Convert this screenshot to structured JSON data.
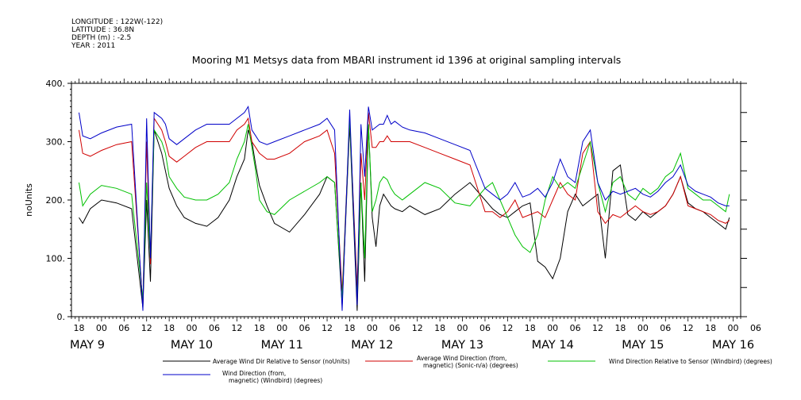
{
  "metadata": [
    "LONGITUDE : 122W(-122)",
    "LATITUDE : 36.8N",
    "DEPTH (m) : -2.5",
    "YEAR : 2011"
  ],
  "chart_data": {
    "type": "line",
    "title": "Mooring M1 Metsys data from MBARI instrument id 1396 at original sampling intervals",
    "ylabel": "noUnits",
    "xlabel": "",
    "ylim": [
      0,
      400
    ],
    "yticks": [
      "0.",
      "100.",
      "200.",
      "300.",
      "400."
    ],
    "hour_ticks": [
      "18",
      "00",
      "06",
      "12",
      "18",
      "00",
      "06",
      "12",
      "18",
      "00",
      "06",
      "12",
      "18",
      "00",
      "06",
      "12",
      "18",
      "00",
      "06",
      "12",
      "18",
      "00",
      "06",
      "12",
      "18",
      "00",
      "06",
      "12",
      "18",
      "00",
      "06"
    ],
    "date_labels": [
      "MAY  9",
      "MAY 10",
      "MAY 11",
      "MAY 12",
      "MAY 13",
      "MAY 14",
      "MAY 15",
      "MAY 16"
    ],
    "xlim_hours": [
      -8,
      170
    ],
    "x_unit": "hours from 2011-05-09 00:00",
    "series": [
      {
        "name": "Average Wind Dir Relative to Sensor (noUnits)",
        "color": "#000000",
        "x": [
          -6,
          -5,
          -3,
          0,
          4,
          8,
          11,
          12,
          13,
          14,
          16,
          17,
          18,
          20,
          22,
          25,
          28,
          31,
          34,
          36,
          38,
          39,
          40,
          41,
          42,
          44,
          46,
          50,
          54,
          58,
          60,
          62,
          64,
          66,
          68,
          69,
          70,
          71,
          72,
          73,
          74,
          75,
          76,
          77,
          78,
          80,
          82,
          86,
          90,
          94,
          98,
          102,
          104,
          106,
          108,
          110,
          112,
          114,
          116,
          118,
          120,
          122,
          124,
          126,
          128,
          130,
          132,
          134,
          136,
          138,
          140,
          142,
          144,
          146,
          148,
          150,
          152,
          154,
          156,
          158,
          160,
          162,
          164,
          166,
          167
        ],
        "y": [
          170,
          160,
          185,
          200,
          195,
          185,
          15,
          200,
          60,
          320,
          280,
          250,
          220,
          190,
          170,
          160,
          155,
          170,
          200,
          240,
          270,
          320,
          300,
          260,
          225,
          190,
          160,
          145,
          175,
          210,
          240,
          230,
          20,
          330,
          10,
          230,
          60,
          330,
          170,
          120,
          190,
          210,
          200,
          190,
          185,
          180,
          190,
          175,
          185,
          210,
          230,
          200,
          185,
          175,
          170,
          180,
          190,
          195,
          95,
          85,
          65,
          100,
          180,
          210,
          190,
          200,
          210,
          100,
          250,
          260,
          175,
          165,
          180,
          170,
          180,
          190,
          210,
          240,
          195,
          185,
          180,
          170,
          160,
          150,
          170
        ]
      },
      {
        "name": "Average Wind Direction (from, magnetic) (Sonic-n/a) (degrees)",
        "color": "#d00000",
        "x": [
          -6,
          -5,
          -3,
          0,
          4,
          8,
          11,
          12,
          13,
          14,
          16,
          17,
          18,
          20,
          22,
          25,
          28,
          31,
          34,
          36,
          38,
          39,
          40,
          41,
          42,
          44,
          46,
          50,
          54,
          58,
          60,
          62,
          64,
          66,
          68,
          69,
          70,
          71,
          72,
          73,
          74,
          75,
          76,
          77,
          78,
          80,
          82,
          86,
          90,
          94,
          98,
          102,
          104,
          106,
          108,
          110,
          112,
          114,
          116,
          118,
          120,
          122,
          124,
          126,
          128,
          130,
          132,
          134,
          136,
          138,
          140,
          142,
          144,
          146,
          148,
          150,
          152,
          154,
          156,
          158,
          160,
          162,
          164,
          166,
          167
        ],
        "y": [
          320,
          280,
          275,
          285,
          295,
          300,
          20,
          300,
          90,
          340,
          320,
          300,
          275,
          265,
          275,
          290,
          300,
          300,
          300,
          320,
          330,
          340,
          300,
          290,
          280,
          270,
          270,
          280,
          300,
          310,
          320,
          280,
          40,
          340,
          50,
          280,
          200,
          350,
          290,
          290,
          300,
          300,
          310,
          300,
          300,
          300,
          300,
          290,
          280,
          270,
          260,
          180,
          180,
          170,
          180,
          200,
          170,
          175,
          180,
          170,
          200,
          230,
          210,
          200,
          280,
          300,
          180,
          160,
          175,
          170,
          180,
          190,
          180,
          175,
          180,
          190,
          210,
          240,
          190,
          185,
          180,
          175,
          165,
          160,
          165
        ]
      },
      {
        "name": "Wind Direction Relative to Sensor (Windbird) (degrees)",
        "color": "#00c000",
        "x": [
          -6,
          -5,
          -3,
          0,
          4,
          8,
          11,
          12,
          13,
          14,
          16,
          17,
          18,
          20,
          22,
          25,
          28,
          31,
          34,
          36,
          38,
          39,
          40,
          41,
          42,
          44,
          46,
          50,
          54,
          58,
          60,
          62,
          64,
          66,
          68,
          69,
          70,
          71,
          72,
          73,
          74,
          75,
          76,
          77,
          78,
          80,
          82,
          86,
          90,
          94,
          98,
          102,
          104,
          106,
          108,
          110,
          112,
          114,
          116,
          118,
          120,
          122,
          124,
          126,
          128,
          130,
          132,
          134,
          136,
          138,
          140,
          142,
          144,
          146,
          148,
          150,
          152,
          154,
          156,
          158,
          160,
          162,
          164,
          166,
          167
        ],
        "y": [
          230,
          190,
          210,
          225,
          220,
          210,
          30,
          230,
          100,
          320,
          300,
          280,
          240,
          220,
          205,
          200,
          200,
          210,
          230,
          270,
          300,
          330,
          290,
          250,
          200,
          180,
          175,
          200,
          215,
          230,
          240,
          230,
          30,
          340,
          30,
          230,
          100,
          330,
          180,
          200,
          230,
          240,
          235,
          220,
          210,
          200,
          210,
          230,
          220,
          195,
          190,
          220,
          230,
          200,
          170,
          140,
          120,
          110,
          140,
          200,
          240,
          220,
          230,
          220,
          260,
          300,
          230,
          180,
          230,
          240,
          210,
          200,
          220,
          210,
          220,
          240,
          250,
          280,
          220,
          210,
          200,
          200,
          190,
          180,
          210
        ]
      },
      {
        "name": "Wind Direction (from, magnetic) (Windbird) (degrees)",
        "color": "#0000c8",
        "x": [
          -6,
          -5,
          -3,
          0,
          4,
          8,
          11,
          12,
          13,
          14,
          16,
          17,
          18,
          20,
          22,
          25,
          28,
          31,
          34,
          36,
          38,
          39,
          40,
          41,
          42,
          44,
          46,
          50,
          54,
          58,
          60,
          62,
          64,
          66,
          68,
          69,
          70,
          71,
          72,
          73,
          74,
          75,
          76,
          77,
          78,
          80,
          82,
          86,
          90,
          94,
          98,
          102,
          104,
          106,
          108,
          110,
          112,
          114,
          116,
          118,
          120,
          122,
          124,
          126,
          128,
          130,
          132,
          134,
          136,
          138,
          140,
          142,
          144,
          146,
          148,
          150,
          152,
          154,
          156,
          158,
          160,
          162,
          164,
          166,
          167
        ],
        "y": [
          350,
          310,
          305,
          315,
          325,
          330,
          10,
          340,
          100,
          350,
          340,
          330,
          305,
          295,
          305,
          320,
          330,
          330,
          330,
          340,
          350,
          360,
          320,
          310,
          300,
          295,
          300,
          310,
          320,
          330,
          340,
          320,
          10,
          355,
          20,
          330,
          240,
          360,
          320,
          325,
          330,
          330,
          345,
          330,
          335,
          325,
          320,
          315,
          305,
          295,
          285,
          220,
          210,
          200,
          210,
          230,
          205,
          210,
          220,
          205,
          230,
          270,
          240,
          230,
          300,
          320,
          230,
          200,
          215,
          210,
          215,
          220,
          210,
          205,
          215,
          230,
          240,
          260,
          225,
          215,
          210,
          205,
          195,
          190,
          190
        ]
      }
    ]
  }
}
